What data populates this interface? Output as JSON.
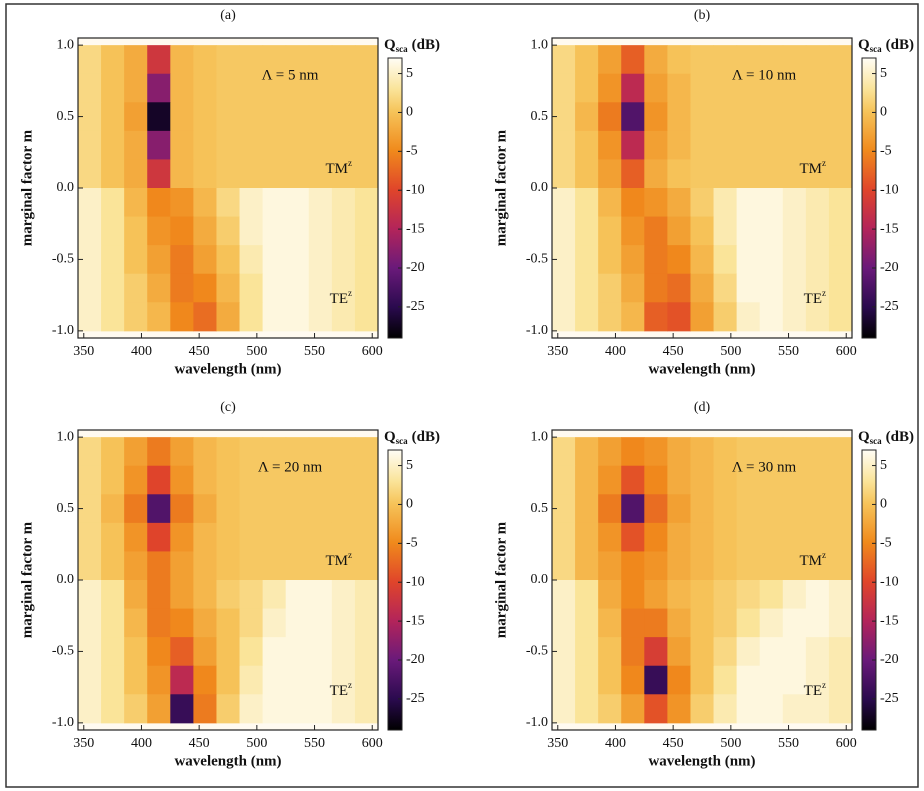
{
  "chart_data": [
    {
      "type": "heatmap",
      "title": "(a)",
      "annotation": "Λ = 5 nm",
      "labels": [
        {
          "text": "TM",
          "sup": "z"
        },
        {
          "text": "TE",
          "sup": "z"
        }
      ],
      "x_label": "wavelength (nm)",
      "y_label": "marginal factor m",
      "colorbar_label": {
        "text": "Q",
        "sub": "sca",
        "unit": "(dB)"
      },
      "xlim": [
        345,
        605
      ],
      "ylim": [
        -1.05,
        1.05
      ],
      "clim": [
        -29,
        7
      ],
      "xticks": [
        350,
        400,
        450,
        500,
        550,
        600
      ],
      "yticks": [
        {
          "value": 1,
          "label": "1.0"
        },
        {
          "value": 0.5,
          "label": "0.5"
        },
        {
          "value": 0,
          "label": "0.0"
        },
        {
          "value": -0.5,
          "label": "-0.5"
        },
        {
          "value": -1,
          "label": "-1.0"
        }
      ],
      "cticks": [
        5,
        0,
        -5,
        -10,
        -15,
        -20,
        -25
      ],
      "x": [
        355,
        375,
        395,
        415,
        435,
        455,
        475,
        495,
        515,
        535,
        555,
        575,
        595
      ],
      "y": [
        0.9,
        0.7,
        0.5,
        0.3,
        0.1,
        -0.1,
        -0.3,
        -0.5,
        -0.7,
        -0.9
      ],
      "z": [
        [
          2,
          0,
          -2,
          -12,
          -1,
          0,
          0.5,
          0.5,
          0.5,
          0.5,
          0.5,
          0.5,
          0.5
        ],
        [
          2,
          0,
          -2,
          -18,
          -1,
          0,
          0.5,
          0.5,
          0.5,
          0.5,
          0.5,
          0.5,
          0.5
        ],
        [
          2,
          0,
          -3,
          -27,
          -1,
          0,
          0.5,
          0.5,
          0.5,
          0.5,
          0.5,
          0.5,
          0.5
        ],
        [
          2,
          0,
          -2,
          -18,
          -1,
          0,
          0.5,
          0.5,
          0.5,
          0.5,
          0.5,
          0.5,
          0.5
        ],
        [
          2,
          0,
          -2,
          -12,
          -1,
          0,
          0.5,
          0.5,
          0.5,
          0.5,
          0.5,
          0.5,
          0.5
        ],
        [
          5,
          3,
          -1,
          -5,
          -4,
          -1,
          2,
          5,
          6,
          6,
          5,
          4,
          3
        ],
        [
          5,
          3,
          0,
          -4,
          -5,
          -2,
          1,
          5,
          6,
          6,
          5,
          4,
          3
        ],
        [
          5,
          3,
          0,
          -3,
          -6,
          -3,
          0,
          4,
          6,
          6,
          5,
          4,
          3
        ],
        [
          5,
          3,
          1,
          -2,
          -6,
          -5,
          -1,
          3,
          6,
          6,
          5,
          4,
          3
        ],
        [
          5,
          3,
          1,
          -1,
          -5,
          -7,
          -2,
          3,
          6,
          6,
          5,
          4,
          3
        ]
      ]
    },
    {
      "type": "heatmap",
      "title": "(b)",
      "annotation": "Λ = 10 nm",
      "labels": [
        {
          "text": "TM",
          "sup": "z"
        },
        {
          "text": "TE",
          "sup": "z"
        }
      ],
      "x_label": "wavelength (nm)",
      "y_label": "marginal factor m",
      "colorbar_label": {
        "text": "Q",
        "sub": "sca",
        "unit": "(dB)"
      },
      "xlim": [
        345,
        605
      ],
      "ylim": [
        -1.05,
        1.05
      ],
      "clim": [
        -29,
        7
      ],
      "xticks": [
        350,
        400,
        450,
        500,
        550,
        600
      ],
      "yticks": [
        {
          "value": 1,
          "label": "1.0"
        },
        {
          "value": 0.5,
          "label": "0.5"
        },
        {
          "value": 0,
          "label": "0.0"
        },
        {
          "value": -0.5,
          "label": "-0.5"
        },
        {
          "value": -1,
          "label": "-1.0"
        }
      ],
      "cticks": [
        5,
        0,
        -5,
        -10,
        -15,
        -20,
        -25
      ],
      "x": [
        355,
        375,
        395,
        415,
        435,
        455,
        475,
        495,
        515,
        535,
        555,
        575,
        595
      ],
      "y": [
        0.9,
        0.7,
        0.5,
        0.3,
        0.1,
        -0.1,
        -0.3,
        -0.5,
        -0.7,
        -0.9
      ],
      "z": [
        [
          2,
          0,
          -3,
          -8,
          -2,
          0,
          0.5,
          0.5,
          0.5,
          0.5,
          0.5,
          0.5,
          0.5
        ],
        [
          2,
          0,
          -4,
          -14,
          -3,
          -1,
          0.5,
          0.5,
          0.5,
          0.5,
          0.5,
          0.5,
          0.5
        ],
        [
          2,
          -1,
          -6,
          -22,
          -4,
          -1,
          0.5,
          0.5,
          0.5,
          0.5,
          0.5,
          0.5,
          0.5
        ],
        [
          2,
          0,
          -4,
          -14,
          -3,
          -1,
          0.5,
          0.5,
          0.5,
          0.5,
          0.5,
          0.5,
          0.5
        ],
        [
          2,
          0,
          -3,
          -8,
          -2,
          0,
          0.5,
          0.5,
          0.5,
          0.5,
          0.5,
          0.5,
          0.5
        ],
        [
          5,
          3,
          -1,
          -5,
          -4,
          -2,
          1,
          4,
          6,
          6,
          5,
          4,
          3
        ],
        [
          5,
          3,
          0,
          -4,
          -6,
          -3,
          0,
          4,
          6,
          6,
          5,
          4,
          3
        ],
        [
          5,
          3,
          0,
          -3,
          -6,
          -5,
          -1,
          3,
          6,
          6,
          5,
          4,
          3
        ],
        [
          5,
          3,
          1,
          -2,
          -6,
          -7,
          -2,
          2,
          6,
          6,
          5,
          4,
          3
        ],
        [
          5,
          3,
          1,
          -1,
          -8,
          -9,
          -3,
          1,
          5,
          6,
          5,
          4,
          3
        ]
      ]
    },
    {
      "type": "heatmap",
      "title": "(c)",
      "annotation": "Λ = 20 nm",
      "labels": [
        {
          "text": "TM",
          "sup": "z"
        },
        {
          "text": "TE",
          "sup": "z"
        }
      ],
      "x_label": "wavelength (nm)",
      "y_label": "marginal factor m",
      "colorbar_label": {
        "text": "Q",
        "sub": "sca",
        "unit": "(dB)"
      },
      "xlim": [
        345,
        605
      ],
      "ylim": [
        -1.05,
        1.05
      ],
      "clim": [
        -29,
        7
      ],
      "xticks": [
        350,
        400,
        450,
        500,
        550,
        600
      ],
      "yticks": [
        {
          "value": 1,
          "label": "1.0"
        },
        {
          "value": 0.5,
          "label": "0.5"
        },
        {
          "value": 0,
          "label": "0.0"
        },
        {
          "value": -0.5,
          "label": "-0.5"
        },
        {
          "value": -1,
          "label": "-1.0"
        }
      ],
      "cticks": [
        5,
        0,
        -5,
        -10,
        -15,
        -20,
        -25
      ],
      "x": [
        355,
        375,
        395,
        415,
        435,
        455,
        475,
        495,
        515,
        535,
        555,
        575,
        595
      ],
      "y": [
        0.9,
        0.7,
        0.5,
        0.3,
        0.1,
        -0.1,
        -0.3,
        -0.5,
        -0.7,
        -0.9
      ],
      "z": [
        [
          2,
          0,
          -3,
          -6,
          -3,
          -1,
          0,
          0.5,
          0.5,
          0.5,
          0.5,
          0.5,
          0.5
        ],
        [
          2,
          0,
          -4,
          -10,
          -4,
          -1,
          0,
          0.5,
          0.5,
          0.5,
          0.5,
          0.5,
          0.5
        ],
        [
          2,
          -1,
          -6,
          -22,
          -6,
          -2,
          0,
          0.5,
          0.5,
          0.5,
          0.5,
          0.5,
          0.5
        ],
        [
          2,
          0,
          -4,
          -10,
          -4,
          -1,
          0,
          0.5,
          0.5,
          0.5,
          0.5,
          0.5,
          0.5
        ],
        [
          2,
          0,
          -3,
          -6,
          -3,
          -1,
          0,
          0.5,
          0.5,
          0.5,
          0.5,
          0.5,
          0.5
        ],
        [
          5,
          3,
          -2,
          -6,
          -3,
          -1,
          1,
          2,
          4,
          6,
          6,
          5,
          4
        ],
        [
          5,
          3,
          -1,
          -6,
          -5,
          -2,
          0,
          2,
          5,
          6,
          6,
          5,
          4
        ],
        [
          5,
          3,
          0,
          -5,
          -8,
          -3,
          0,
          3,
          6,
          6,
          6,
          5,
          4
        ],
        [
          5,
          3,
          0,
          -4,
          -14,
          -5,
          0,
          4,
          6,
          6,
          6,
          5,
          4
        ],
        [
          5,
          3,
          1,
          -3,
          -24,
          -6,
          1,
          5,
          6,
          6,
          6,
          5,
          4
        ]
      ]
    },
    {
      "type": "heatmap",
      "title": "(d)",
      "annotation": "Λ = 30 nm",
      "labels": [
        {
          "text": "TM",
          "sup": "z"
        },
        {
          "text": "TE",
          "sup": "z"
        }
      ],
      "x_label": "wavelength (nm)",
      "y_label": "marginal factor m",
      "colorbar_label": {
        "text": "Q",
        "sub": "sca",
        "unit": "(dB)"
      },
      "xlim": [
        345,
        605
      ],
      "ylim": [
        -1.05,
        1.05
      ],
      "clim": [
        -29,
        7
      ],
      "xticks": [
        350,
        400,
        450,
        500,
        550,
        600
      ],
      "yticks": [
        {
          "value": 1,
          "label": "1.0"
        },
        {
          "value": 0.5,
          "label": "0.5"
        },
        {
          "value": 0,
          "label": "0.0"
        },
        {
          "value": -0.5,
          "label": "-0.5"
        },
        {
          "value": -1,
          "label": "-1.0"
        }
      ],
      "cticks": [
        5,
        0,
        -5,
        -10,
        -15,
        -20,
        -25
      ],
      "x": [
        355,
        375,
        395,
        415,
        435,
        455,
        475,
        495,
        515,
        535,
        555,
        575,
        595
      ],
      "y": [
        0.9,
        0.7,
        0.5,
        0.3,
        0.1,
        -0.1,
        -0.3,
        -0.5,
        -0.7,
        -0.9
      ],
      "z": [
        [
          2,
          -1,
          -3,
          -5,
          -4,
          -2,
          -1,
          0,
          0.5,
          0.5,
          0.5,
          0.5,
          0.5
        ],
        [
          2,
          -1,
          -4,
          -9,
          -5,
          -2,
          -1,
          0,
          0.5,
          0.5,
          0.5,
          0.5,
          0.5
        ],
        [
          2,
          -1,
          -6,
          -22,
          -7,
          -3,
          -1,
          0,
          0.5,
          0.5,
          0.5,
          0.5,
          0.5
        ],
        [
          2,
          -1,
          -4,
          -9,
          -5,
          -2,
          -1,
          0,
          0.5,
          0.5,
          0.5,
          0.5,
          0.5
        ],
        [
          2,
          -1,
          -3,
          -5,
          -4,
          -2,
          -1,
          0,
          0.5,
          0.5,
          0.5,
          0.5,
          0.5
        ],
        [
          5,
          3,
          -2,
          -5,
          -3,
          -1,
          0,
          1,
          2,
          3,
          5,
          6,
          5
        ],
        [
          5,
          3,
          -1,
          -6,
          -6,
          -2,
          0,
          1,
          3,
          5,
          6,
          6,
          5
        ],
        [
          5,
          3,
          0,
          -6,
          -11,
          -3,
          0,
          2,
          5,
          6,
          6,
          5,
          4
        ],
        [
          5,
          3,
          0,
          -5,
          -24,
          -5,
          0,
          3,
          6,
          6,
          6,
          5,
          4
        ],
        [
          5,
          3,
          1,
          -3,
          -9,
          -4,
          1,
          4,
          6,
          6,
          5,
          5,
          4
        ]
      ]
    }
  ]
}
